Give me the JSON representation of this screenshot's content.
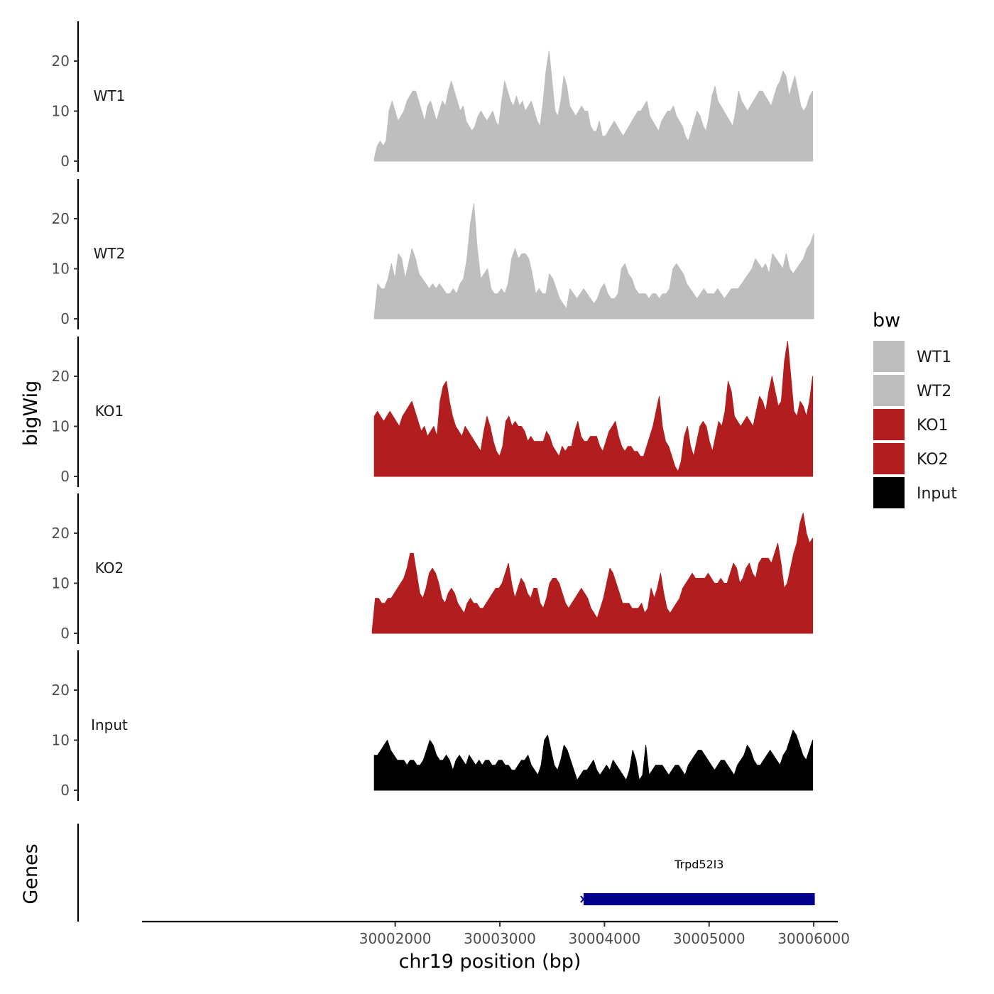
{
  "chart_data": {
    "type": "area",
    "y_axis_title": "bigWig",
    "x_axis_title": "chr19 position (bp)",
    "genes_axis_title": "Genes",
    "x_range": [
      29999580,
      30006230
    ],
    "x_ticks": [
      30002000,
      30003000,
      30004000,
      30005000,
      30006000
    ],
    "x_tick_labels": [
      "30002000",
      "30003000",
      "30004000",
      "30005000",
      "30006000"
    ],
    "y_range": [
      0,
      27
    ],
    "y_ticks": [
      0,
      10,
      20
    ],
    "y_tick_labels": [
      "0",
      "10",
      "20"
    ],
    "legend": {
      "title": "bw",
      "position": "right",
      "items": [
        {
          "label": "WT1",
          "color": "#bebebe"
        },
        {
          "label": "WT2",
          "color": "#bebebe"
        },
        {
          "label": "KO1",
          "color": "#b21e1f"
        },
        {
          "label": "KO2",
          "color": "#b21e1f"
        },
        {
          "label": "Input",
          "color": "#000000"
        }
      ]
    },
    "series": [
      {
        "name": "WT1",
        "color": "#bebebe",
        "x_start": 30001800,
        "x_end": 30005990,
        "values": [
          0.5,
          3,
          4,
          3,
          4,
          10,
          12,
          10,
          8,
          9,
          10,
          12,
          13,
          14,
          14,
          12,
          10,
          8,
          11,
          12,
          10,
          8,
          10,
          12,
          11,
          14,
          16,
          14,
          12,
          10,
          11,
          8,
          7,
          6,
          7,
          9,
          10,
          9,
          8,
          9,
          10,
          8,
          7,
          12,
          16,
          14,
          12,
          11,
          13,
          11,
          12,
          10,
          11,
          12,
          10,
          8,
          7,
          12,
          18,
          22,
          16,
          10,
          9,
          12,
          17,
          15,
          11,
          10,
          9,
          10,
          11,
          10,
          10,
          7,
          6,
          6,
          8,
          5,
          5,
          6,
          7,
          8,
          7,
          6,
          5,
          6,
          7,
          8,
          9,
          10,
          10,
          11,
          12,
          9,
          8,
          7,
          6,
          8,
          9,
          10,
          10,
          11,
          9,
          8,
          7,
          5,
          4,
          6,
          8,
          10,
          9,
          7,
          6,
          9,
          13,
          15,
          12,
          11,
          10,
          9,
          8,
          7,
          10,
          14,
          12,
          11,
          10,
          11,
          12,
          13,
          14,
          14,
          13,
          12,
          11,
          13,
          15,
          16,
          18,
          17,
          13,
          15,
          17,
          14,
          11,
          10,
          11,
          13,
          14
        ],
        "y_max_shown": 22.5
      },
      {
        "name": "WT2",
        "color": "#bebebe",
        "x_start": 30001800,
        "x_end": 30006000,
        "values": [
          0.5,
          7,
          6,
          6,
          8,
          11,
          8,
          13,
          12,
          8,
          11,
          14,
          12,
          9,
          8,
          7,
          6,
          7,
          6,
          7,
          6,
          5,
          5,
          6,
          5,
          7,
          8,
          12,
          19,
          23,
          14,
          8,
          9,
          10,
          6,
          5,
          5,
          6,
          5,
          7,
          12,
          14,
          12,
          13,
          13,
          12,
          9,
          5,
          6,
          5,
          5,
          9,
          8,
          6,
          4,
          3,
          2,
          6,
          5,
          4,
          5,
          6,
          5,
          4,
          3,
          4,
          6,
          7,
          5,
          4,
          4,
          5,
          10,
          11,
          9,
          8,
          6,
          5,
          5,
          5,
          4,
          5,
          5,
          4,
          5,
          5,
          6,
          10,
          11,
          10,
          9,
          7,
          6,
          5,
          4,
          5,
          6,
          5,
          5,
          5,
          6,
          5,
          4,
          5,
          6,
          6,
          6,
          7,
          8,
          9,
          10,
          12,
          11,
          10,
          11,
          9,
          13,
          12,
          11,
          10,
          13,
          10,
          9,
          10,
          11,
          12,
          14,
          15,
          17
        ],
        "y_max_shown": 23
      },
      {
        "name": "KO1",
        "color": "#b21e1f",
        "x_start": 30001800,
        "x_end": 30005990,
        "values": [
          12,
          13,
          12,
          11,
          12,
          13,
          12,
          11,
          10,
          12,
          13,
          14,
          15,
          13,
          11,
          9,
          10,
          8,
          9,
          10,
          8,
          15,
          18,
          19,
          15,
          12,
          10,
          9,
          8,
          10,
          9,
          8,
          7,
          6,
          5,
          9,
          12,
          10,
          7,
          5,
          4,
          6,
          11,
          12,
          10,
          11,
          10,
          10,
          9,
          7,
          8,
          7,
          7,
          7,
          7,
          9,
          8,
          6,
          5,
          4,
          6,
          5,
          6,
          6,
          9,
          11,
          8,
          7,
          7,
          8,
          8,
          8,
          6,
          5,
          7,
          9,
          10,
          11,
          8,
          6,
          5,
          6,
          6,
          5,
          5,
          4,
          4,
          6,
          8,
          10,
          13,
          16,
          10,
          7,
          6,
          4,
          2,
          1,
          3,
          8,
          10,
          6,
          4,
          7,
          10,
          11,
          10,
          7,
          5,
          8,
          11,
          10,
          13,
          19,
          17,
          12,
          11,
          10,
          11,
          12,
          11,
          10,
          13,
          16,
          15,
          13,
          17,
          20,
          17,
          14,
          15,
          23,
          27,
          20,
          13,
          12,
          15,
          14,
          12,
          15,
          20
        ],
        "y_max_shown": 26.5
      },
      {
        "name": "KO2",
        "color": "#b21e1f",
        "x_start": 30001780,
        "x_end": 30005990,
        "values": [
          0.5,
          7,
          7,
          6,
          6,
          7,
          7,
          8,
          9,
          10,
          11,
          13,
          16,
          16,
          12,
          8,
          7,
          9,
          12,
          13,
          12,
          10,
          7,
          6,
          8,
          9,
          8,
          6,
          5,
          4,
          6,
          7,
          6,
          6,
          5,
          5,
          6,
          7,
          8,
          9,
          9,
          10,
          12,
          14,
          10,
          7,
          9,
          11,
          10,
          8,
          7,
          9,
          9,
          6,
          5,
          7,
          10,
          11,
          11,
          10,
          8,
          6,
          5,
          6,
          7,
          8,
          9,
          8,
          7,
          5,
          4,
          3,
          5,
          7,
          10,
          13,
          12,
          10,
          8,
          6,
          6,
          6,
          5,
          5,
          5,
          6,
          4,
          5,
          9,
          7,
          9,
          12,
          8,
          5,
          4,
          5,
          6,
          7,
          9,
          10,
          11,
          12,
          11,
          11,
          11,
          11,
          12,
          11,
          10,
          10,
          11,
          10,
          10,
          12,
          14,
          13,
          10,
          11,
          13,
          14,
          12,
          11,
          14,
          15,
          15,
          15,
          14,
          16,
          18,
          14,
          9,
          10,
          13,
          16,
          18,
          22,
          24,
          20,
          18,
          19
        ],
        "y_max_shown": 24
      },
      {
        "name": "Input",
        "color": "#000000",
        "x_start": 30001800,
        "x_end": 30005990,
        "values": [
          7,
          7,
          8,
          9,
          10,
          8,
          7,
          6,
          6,
          6,
          5,
          6,
          6,
          5,
          5,
          6,
          8,
          10,
          9,
          7,
          6,
          6,
          7,
          6,
          4,
          6,
          7,
          6,
          5,
          7,
          6,
          5,
          6,
          5,
          6,
          6,
          5,
          5,
          6,
          6,
          5,
          5,
          4,
          4,
          5,
          6,
          6,
          7,
          5,
          4,
          3,
          5,
          10,
          11,
          8,
          5,
          4,
          6,
          9,
          8,
          6,
          4,
          2,
          3,
          4,
          4,
          5,
          6,
          4,
          3,
          4,
          5,
          4,
          6,
          5,
          4,
          3,
          2,
          4,
          8,
          6,
          2,
          3,
          9,
          3,
          4,
          5,
          5,
          5,
          4,
          3,
          4,
          5,
          5,
          4,
          3,
          5,
          6,
          7,
          8,
          8,
          7,
          6,
          5,
          4,
          5,
          6,
          6,
          5,
          4,
          3,
          5,
          6,
          7,
          9,
          8,
          6,
          5,
          5,
          6,
          7,
          8,
          7,
          6,
          5,
          7,
          8,
          10,
          12,
          11,
          9,
          7,
          6,
          8,
          10
        ],
        "y_max_shown": 12.5
      }
    ],
    "genes": [
      {
        "name": "Trpd52l3",
        "start": 30003800,
        "end": 30006010,
        "color": "#00008b",
        "strand": "+"
      }
    ]
  }
}
